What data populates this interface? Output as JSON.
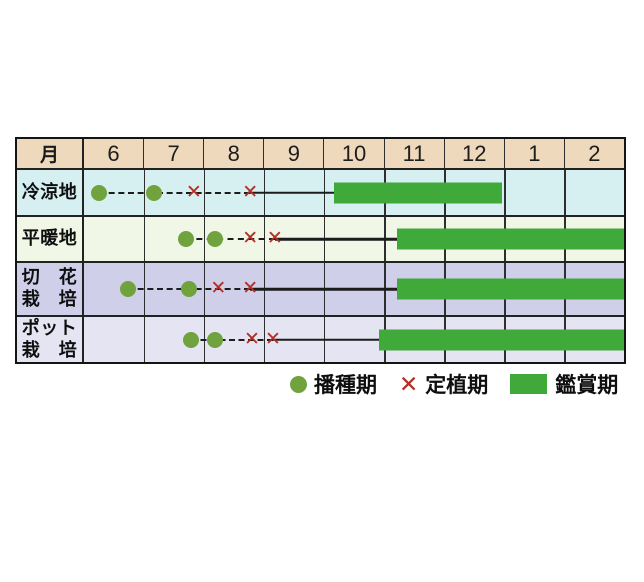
{
  "chart_data": {
    "type": "gantt",
    "title": "",
    "axis": {
      "corner_label": "月",
      "months": [
        "6",
        "7",
        "8",
        "9",
        "10",
        "11",
        "12",
        "1",
        "2"
      ],
      "unit_note": "marker/bar positions in axis units: 0 = left edge of June column, 9 = right edge of February column",
      "grid": "on"
    },
    "rows": [
      {
        "label_lines": [
          "冷涼地"
        ],
        "row_bg": "#d6eff1",
        "sowing_u": [
          0.25,
          1.17
        ],
        "planting_u": [
          1.83,
          2.77
        ],
        "viewing_bar_u": [
          4.17,
          6.97
        ]
      },
      {
        "label_lines": [
          "平暖地"
        ],
        "row_bg": "#f1f7e7",
        "sowing_u": [
          1.7,
          2.19
        ],
        "planting_u": [
          2.77,
          3.18
        ],
        "viewing_bar_u": [
          5.21,
          9
        ]
      },
      {
        "label_lines": [
          "切　花",
          "栽　培"
        ],
        "row_bg": "#cfcfe9",
        "sowing_u": [
          0.74,
          1.75
        ],
        "planting_u": [
          2.24,
          2.77
        ],
        "viewing_bar_u": [
          5.21,
          9
        ]
      },
      {
        "label_lines": [
          "ポット",
          "栽　培"
        ],
        "row_bg": "#e4e4f3",
        "sowing_u": [
          1.78,
          2.19
        ],
        "planting_u": [
          2.8,
          3.15
        ],
        "viewing_bar_u": [
          4.91,
          9
        ]
      }
    ],
    "legend": [
      {
        "symbol": "sowing-dot",
        "label": "播種期"
      },
      {
        "symbol": "planting-cross",
        "label": "定植期"
      },
      {
        "symbol": "viewing-bar",
        "label": "鑑賞期"
      }
    ],
    "legend_position": "bottom-right"
  },
  "icons": {
    "cross_glyph": "✕"
  },
  "colors": {
    "page_bg": "#ffffff",
    "header_bg": "#eed9bd",
    "dot_green": "#70a33e",
    "bar_green": "#3fa93a",
    "cross_red": "#b23026",
    "grid_line": "#2e2e2e",
    "outer_border": "#141414"
  }
}
